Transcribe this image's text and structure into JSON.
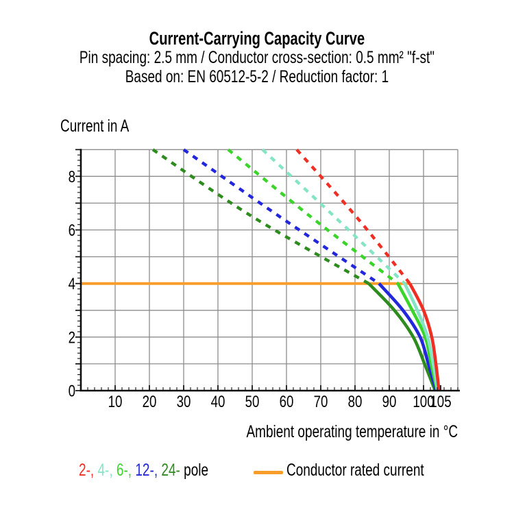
{
  "header": {
    "title": "Current-Carrying Capacity Curve",
    "subtitle1": "Pin spacing: 2.5 mm / Conductor cross-section: 0.5 mm² \"f-st\"",
    "subtitle2": "Based on: EN 60512-5-2 / Reduction factor: 1"
  },
  "chart_data": {
    "type": "line",
    "title": "Current-Carrying Capacity Curve",
    "xlabel": "Ambient operating temperature in °C",
    "ylabel": "Current in A",
    "xlim": [
      0,
      110
    ],
    "ylim": [
      0,
      9
    ],
    "x_ticks": [
      10,
      20,
      30,
      40,
      50,
      60,
      70,
      80,
      90,
      100,
      105
    ],
    "y_ticks": [
      0,
      2,
      4,
      6,
      8
    ],
    "x_minor_step": 2,
    "y_minor_step": 0.2,
    "grid": true,
    "grid_color": "#8c8c8c",
    "axis_color": "#0f0f0f",
    "rated_current": {
      "label": "Conductor rated current",
      "value_A": 4,
      "color": "#F89D2A",
      "x_start": 0,
      "x_end": 96.2
    },
    "series": [
      {
        "name": "24-pole",
        "color": "#2E8B1E",
        "dashed": [
          [
            21,
            9
          ],
          [
            50,
            6.5
          ],
          [
            84,
            4
          ]
        ],
        "solid": [
          [
            84,
            4
          ],
          [
            91.5,
            3
          ],
          [
            97,
            2
          ],
          [
            100.3,
            1
          ],
          [
            103.4,
            0
          ]
        ]
      },
      {
        "name": "12-pole",
        "color": "#2227DB",
        "dashed": [
          [
            30,
            9
          ],
          [
            58,
            6.5
          ],
          [
            87,
            4
          ]
        ],
        "solid": [
          [
            87,
            4
          ],
          [
            94,
            3
          ],
          [
            99,
            2
          ],
          [
            101.4,
            1
          ],
          [
            103.7,
            0
          ]
        ]
      },
      {
        "name": "6-pole",
        "color": "#3BD42A",
        "dashed": [
          [
            43,
            9
          ],
          [
            67,
            6.5
          ],
          [
            92.5,
            4
          ]
        ],
        "solid": [
          [
            92.5,
            4
          ],
          [
            96.7,
            3
          ],
          [
            100.5,
            2
          ],
          [
            102.2,
            1
          ],
          [
            104,
            0
          ]
        ]
      },
      {
        "name": "4-pole",
        "color": "#85E4C5",
        "dashed": [
          [
            53,
            9
          ],
          [
            74,
            6.5
          ],
          [
            94.5,
            4
          ]
        ],
        "solid": [
          [
            94.5,
            4
          ],
          [
            98.2,
            3
          ],
          [
            101.2,
            2
          ],
          [
            102.8,
            1
          ],
          [
            104.15,
            0
          ]
        ]
      },
      {
        "name": "2-pole",
        "color": "#EF2E24",
        "dashed": [
          [
            63,
            9
          ],
          [
            81,
            6.4
          ],
          [
            96,
            4
          ]
        ],
        "solid": [
          [
            96,
            4
          ],
          [
            100,
            3
          ],
          [
            102.4,
            2
          ],
          [
            103.6,
            1
          ],
          [
            104.5,
            0
          ]
        ]
      }
    ]
  },
  "legend": {
    "pole_items": [
      {
        "label": "2-,",
        "color": "#EF2E24"
      },
      {
        "label": "4-,",
        "color": "#85E4C5"
      },
      {
        "label": "6-,",
        "color": "#3BD42A"
      },
      {
        "label": "12-,",
        "color": "#2227DB"
      },
      {
        "label": "24-",
        "color": "#2E8B1E"
      }
    ],
    "pole_suffix": "pole",
    "rated_label": "Conductor rated current"
  }
}
